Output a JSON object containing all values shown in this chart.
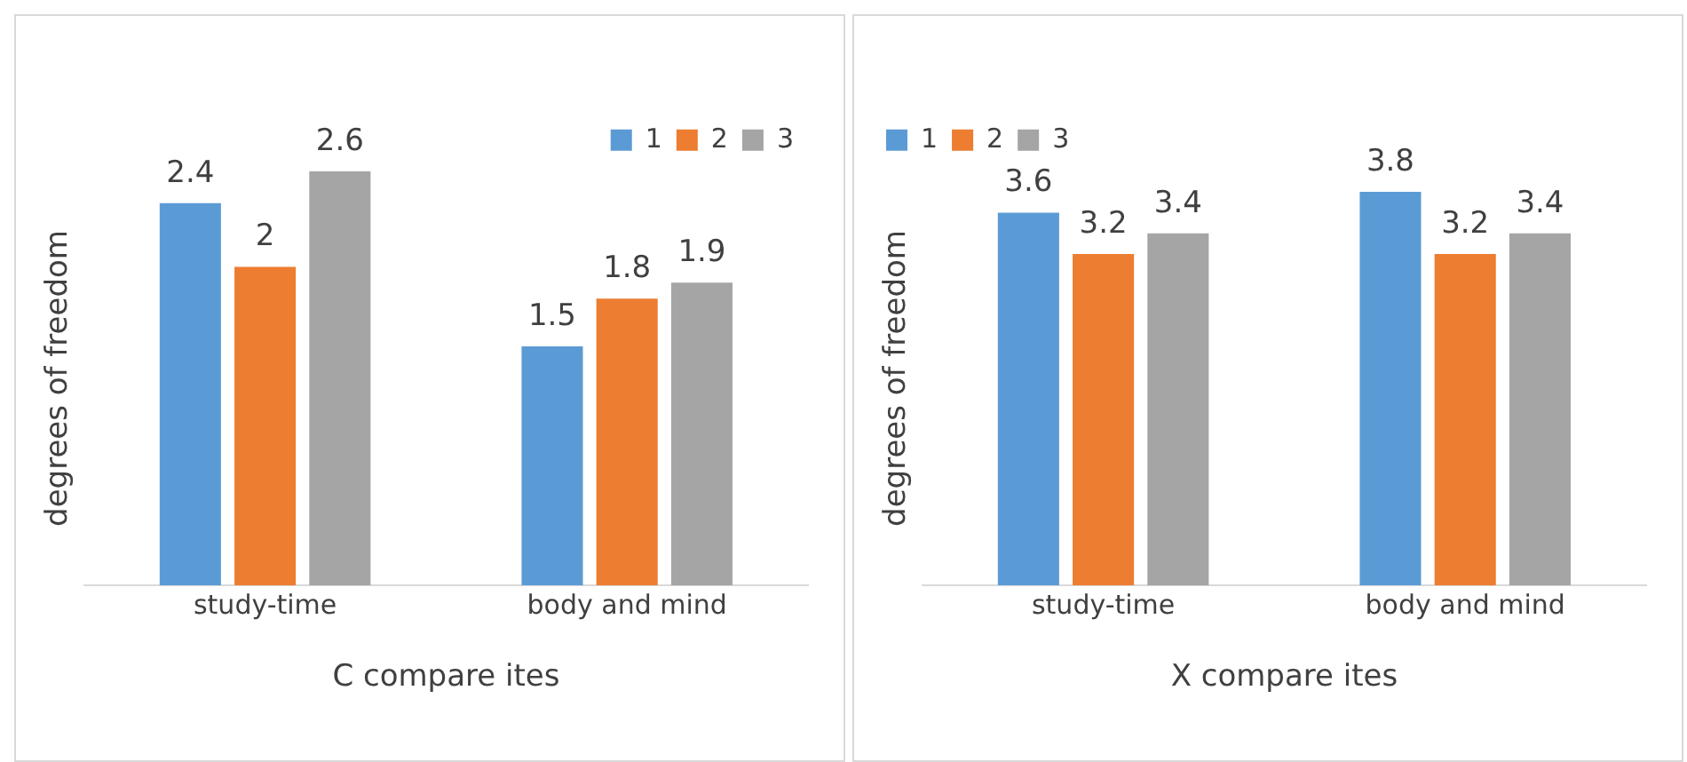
{
  "chart_data": [
    {
      "type": "bar",
      "categories": [
        "study-time",
        "body and mind"
      ],
      "series": [
        {
          "name": "1",
          "color": "#5b9bd5",
          "values": [
            2.4,
            1.5
          ]
        },
        {
          "name": "2",
          "color": "#ed7d31",
          "values": [
            2,
            1.8
          ]
        },
        {
          "name": "3",
          "color": "#a5a5a5",
          "values": [
            2.6,
            1.9
          ]
        }
      ],
      "xlabel": "C compare ites",
      "ylabel": "degrees of freedom",
      "ylim": [
        0,
        2.6
      ],
      "data_labels": true,
      "legend": "top right",
      "tick_labels": "x",
      "grid": false
    },
    {
      "type": "bar",
      "categories": [
        "study-time",
        "body and mind"
      ],
      "series": [
        {
          "name": "1",
          "color": "#5b9bd5",
          "values": [
            3.6,
            3.8
          ]
        },
        {
          "name": "2",
          "color": "#ed7d31",
          "values": [
            3.2,
            3.2
          ]
        },
        {
          "name": "3",
          "color": "#a5a5a5",
          "values": [
            3.4,
            3.4
          ]
        }
      ],
      "xlabel": "X compare ites",
      "ylabel": "degrees of freedom",
      "data_labels": true,
      "legend": "top left",
      "tick_labels": "x",
      "grid": false
    }
  ]
}
